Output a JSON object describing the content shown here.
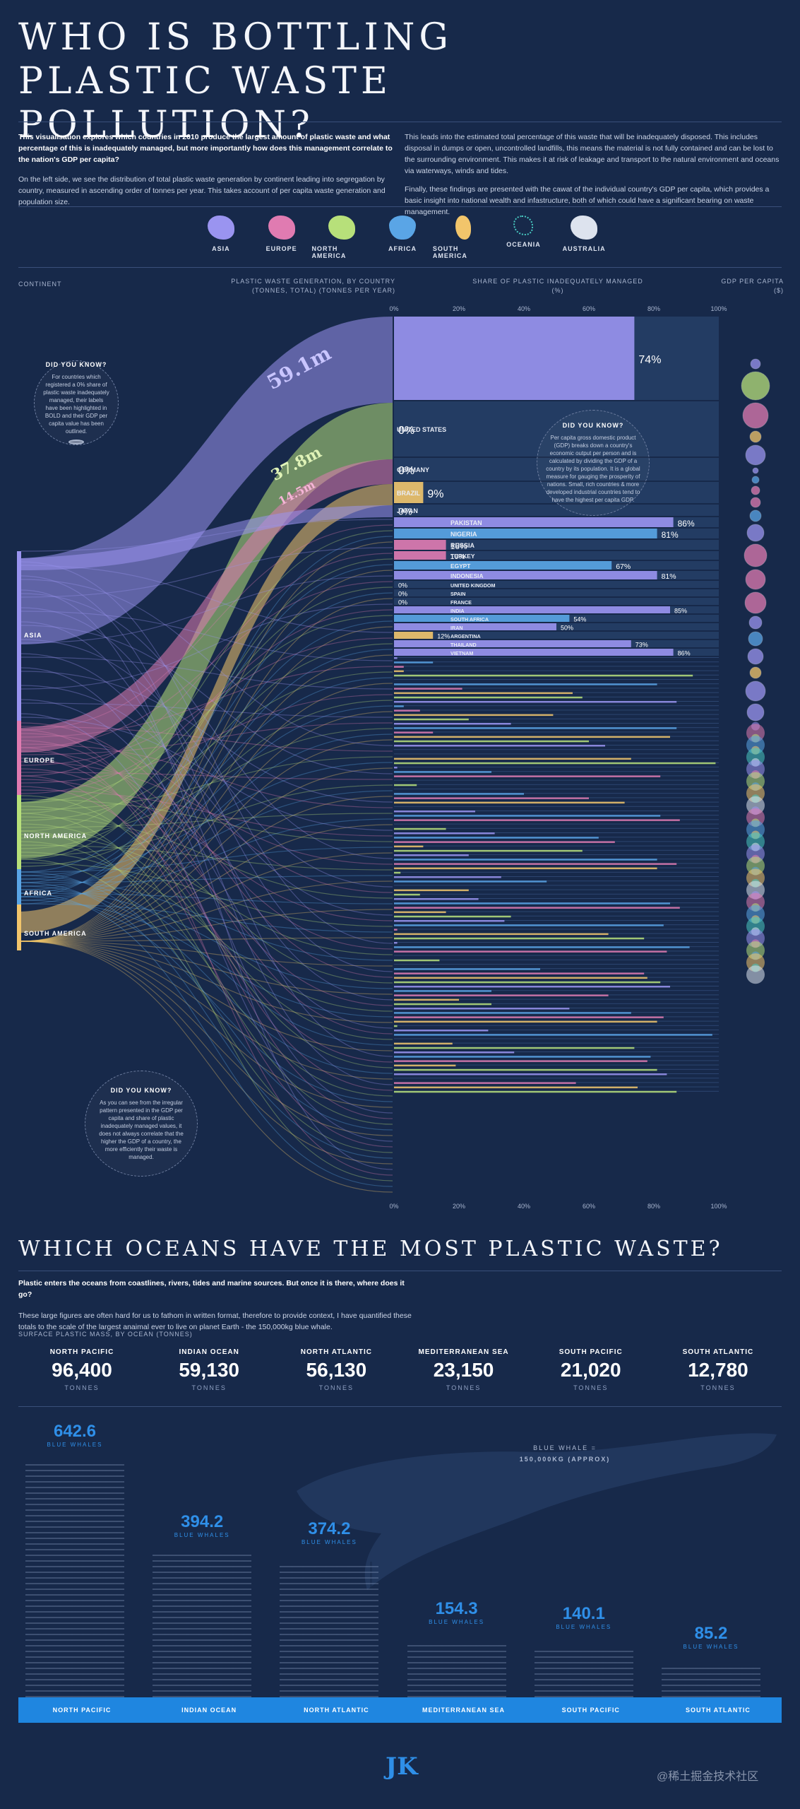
{
  "header": {
    "title": "WHO IS BOTTLING PLASTIC WASTE POLLUTION?",
    "intro_left_bold": "This visualisation explores which countries in 2010 produce the largest amount of plastic waste and what percentage of this is inadequately managed, but more importantly how does this management correlate to the nation's GDP per capita?",
    "intro_left_2": "On the left side, we see the distribution of total plastic waste generation by continent leading into segregation by country, measured in ascending order of tonnes per year. This takes account of per capita waste generation and population size.",
    "intro_right_1": "This leads into the estimated total percentage of this waste that will be inadequately disposed. This includes disposal in dumps or open, uncontrolled landfills, this means the material is not fully contained and can be lost to the surrounding environment. This makes it at risk of leakage and transport to the natural environment and oceans via waterways, winds and tides.",
    "intro_right_2": "Finally, these findings are presented with the cawat of the individual country's GDP per capita, which provides a basic insight into national wealth and infastructure, both of which could have a significant bearing on waste management."
  },
  "continents": [
    {
      "name": "ASIA",
      "color": "#9a94f0"
    },
    {
      "name": "EUROPE",
      "color": "#e07bb1"
    },
    {
      "name": "NORTH AMERICA",
      "color": "#b7e07a"
    },
    {
      "name": "AFRICA",
      "color": "#5aa5e6"
    },
    {
      "name": "SOUTH AMERICA",
      "color": "#f2c56b"
    },
    {
      "name": "OCEANIA",
      "color": "#48c9c1"
    },
    {
      "name": "AUSTRALIA",
      "color": "#dde3ee"
    }
  ],
  "columns": {
    "continent": "CONTINENT",
    "generation": "PLASTIC WASTE GENERATION, BY COUNTRY",
    "generation_sub": "(TONNES, TOTAL) (TONNES PER YEAR)",
    "share": "SHARE OF PLASTIC INADEQUATELY MANAGED",
    "share_sub": "(%)",
    "gdp": "GDP PER CAPITA",
    "gdp_sub": "($)"
  },
  "continent_labels": [
    "ASIA",
    "EUROPE",
    "NORTH AMERICA",
    "AFRICA",
    "SOUTH AMERICA"
  ],
  "flow_values": {
    "china": "59.1m",
    "usa": "37.8m",
    "germany": "14.5m"
  },
  "callouts": [
    {
      "title": "DID YOU KNOW?",
      "text": "For countries which registered a 0% share of plastic waste inadequately managed, their labels have been highlighted in BOLD and their GDP per capita value has been outlined."
    },
    {
      "title": "DID YOU KNOW?",
      "text": "Per capita gross domestic product (GDP) breaks down a country's economic output per person and is calculated by dividing the GDP of a country by its population. It is a global measure for gauging the prosperity of nations. Small, rich countries & more developed industrial countries tend to have the highest per capita GDP."
    },
    {
      "title": "DID YOU KNOW?",
      "text": "As you can see from the irregular pattern presented in the GDP per capita and share of plastic inadequately managed values, it does not always correlate that the higher the GDP of a country, the more efficiently their waste is managed."
    }
  ],
  "chart_data": {
    "type": "bar",
    "xlabel": "SHARE OF PLASTIC INADEQUATELY MANAGED (%)",
    "xlim": [
      0,
      100
    ],
    "x_ticks": [
      "0%",
      "20%",
      "40%",
      "60%",
      "80%",
      "100%"
    ],
    "countries": [
      "CHINA",
      "UNITED STATES",
      "GERMANY",
      "BRAZIL",
      "JAPAN",
      "PAKISTAN",
      "NIGERIA",
      "RUSSIA",
      "TURKEY",
      "EGYPT",
      "INDONESIA",
      "UNITED KINGDOM",
      "SPAIN",
      "FRANCE",
      "INDIA",
      "SOUTH AFRICA",
      "IRAN",
      "ARGENTINA",
      "THAILAND",
      "VIETNAM"
    ],
    "values": [
      74,
      0,
      0,
      9,
      0,
      86,
      81,
      16,
      16,
      67,
      81,
      0,
      0,
      0,
      85,
      54,
      50,
      12,
      73,
      86
    ],
    "value_labels": [
      "74%",
      "0%",
      "0%",
      "9%",
      "0%",
      "86%",
      "81%",
      "16%",
      "16%",
      "67%",
      "81%",
      "0%",
      "0%",
      "0%",
      "85%",
      "54%",
      "50%",
      "12%",
      "73%",
      "86%"
    ],
    "continent": [
      "ASIA",
      "NORTH AMERICA",
      "EUROPE",
      "SOUTH AMERICA",
      "ASIA",
      "ASIA",
      "AFRICA",
      "EUROPE",
      "EUROPE",
      "AFRICA",
      "ASIA",
      "EUROPE",
      "EUROPE",
      "EUROPE",
      "ASIA",
      "AFRICA",
      "ASIA",
      "SOUTH AMERICA",
      "ASIA",
      "ASIA"
    ],
    "tail_values": [
      1,
      12,
      3,
      3,
      92,
      0,
      81,
      21,
      55,
      58,
      87,
      3,
      8,
      49,
      23,
      36,
      87,
      12,
      85,
      60,
      65,
      0,
      0,
      73,
      99,
      1,
      30,
      82,
      0,
      7,
      0,
      40,
      60,
      71,
      0,
      25,
      82,
      88,
      0,
      16,
      31,
      63,
      68,
      9,
      58,
      23,
      81,
      87,
      81,
      2,
      33,
      47,
      0,
      23,
      8,
      26,
      85,
      88,
      16,
      36,
      34,
      83,
      1,
      66,
      77,
      1,
      91,
      84,
      0,
      14,
      0,
      45,
      77,
      78,
      82,
      85,
      30,
      66,
      20,
      30,
      54,
      73,
      83,
      81,
      1,
      29,
      98,
      0,
      18,
      74,
      37,
      79,
      78,
      19,
      81,
      84,
      0,
      56,
      75,
      87
    ]
  },
  "oceans": {
    "title": "WHICH OCEANS HAVE THE MOST PLASTIC WASTE?",
    "intro_bold": "Plastic enters the oceans from coastlines, rivers, tides and marine sources. But once it is there, where does it go?",
    "intro": "These large figures are often hard for us to fathom in written format, therefore to provide context, I have quantified these totals to the scale of the largest anaimal ever to live on planet Earth - the 150,000kg blue whale.",
    "subhead": "SURFACE PLASTIC MASS, BY OCEAN (TONNES)",
    "unit": "TONNES",
    "whale_unit": "BLUE WHALES",
    "whale_note_1": "BLUE WHALE =",
    "whale_note_2": "150,000KG (APPROX)",
    "items": [
      {
        "name": "NORTH PACIFIC",
        "tonnes": "96,400",
        "whales": "642.6",
        "whales_num": 642.6
      },
      {
        "name": "INDIAN OCEAN",
        "tonnes": "59,130",
        "whales": "394.2",
        "whales_num": 394.2
      },
      {
        "name": "NORTH ATLANTIC",
        "tonnes": "56,130",
        "whales": "374.2",
        "whales_num": 374.2
      },
      {
        "name": "MEDITERRANEAN SEA",
        "tonnes": "23,150",
        "whales": "154.3",
        "whales_num": 154.3
      },
      {
        "name": "SOUTH PACIFIC",
        "tonnes": "21,020",
        "whales": "140.1",
        "whales_num": 140.1
      },
      {
        "name": "SOUTH ATLANTIC",
        "tonnes": "12,780",
        "whales": "85.2",
        "whales_num": 85.2
      }
    ]
  },
  "footer": {
    "logo": "JK",
    "watermark": "@稀土掘金技术社区"
  }
}
